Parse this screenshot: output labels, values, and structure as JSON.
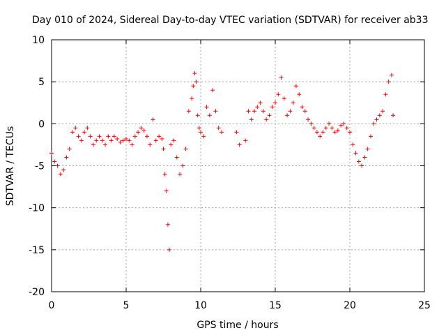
{
  "chart_data": {
    "type": "scatter",
    "title": "Day 010 of 2024, Sidereal Day-to-day VTEC variation (SDTVAR) for receiver ab33",
    "xlabel": "GPS time / hours",
    "ylabel": "SDTVAR / TECUs",
    "xlim": [
      0,
      25
    ],
    "ylim": [
      -20,
      10
    ],
    "xticks": [
      0,
      5,
      10,
      15,
      20,
      25
    ],
    "yticks": [
      -20,
      -15,
      -10,
      -5,
      0,
      5,
      10
    ],
    "xtick_labels": [
      "0",
      "5",
      "10",
      "15",
      "20",
      "25"
    ],
    "ytick_labels": [
      "-20",
      "-15",
      "-10",
      "-5",
      "0",
      "5",
      "10"
    ],
    "grid": true,
    "marker": "+",
    "series": [
      {
        "name": "SDTVAR",
        "color": "#ff0000",
        "x": [
          0.0,
          0.2,
          0.4,
          0.6,
          0.8,
          1.0,
          1.2,
          1.4,
          1.6,
          1.8,
          2.0,
          2.2,
          2.4,
          2.6,
          2.8,
          3.0,
          3.2,
          3.4,
          3.6,
          3.8,
          4.0,
          4.2,
          4.4,
          4.6,
          4.8,
          5.0,
          5.2,
          5.4,
          5.6,
          5.8,
          6.0,
          6.2,
          6.4,
          6.6,
          6.8,
          7.0,
          7.2,
          7.4,
          7.5,
          7.6,
          7.7,
          7.8,
          7.9,
          8.0,
          8.2,
          8.4,
          8.6,
          8.8,
          9.0,
          9.2,
          9.4,
          9.5,
          9.6,
          9.7,
          9.8,
          9.9,
          10.0,
          10.2,
          10.4,
          10.6,
          10.8,
          11.0,
          11.2,
          11.4,
          12.4,
          12.6,
          13.0,
          13.2,
          13.4,
          13.6,
          13.8,
          14.0,
          14.2,
          14.4,
          14.6,
          14.8,
          15.0,
          15.2,
          15.4,
          15.6,
          15.8,
          16.0,
          16.2,
          16.4,
          16.6,
          16.8,
          17.0,
          17.2,
          17.4,
          17.6,
          17.8,
          18.0,
          18.2,
          18.4,
          18.6,
          18.8,
          19.0,
          19.2,
          19.4,
          19.6,
          19.8,
          20.0,
          20.2,
          20.4,
          20.6,
          20.8,
          21.0,
          21.2,
          21.4,
          21.6,
          21.8,
          22.0,
          22.2,
          22.4,
          22.6,
          22.8,
          22.9
        ],
        "y": [
          -3.5,
          -4.5,
          -5.0,
          -6.0,
          -5.5,
          -4.0,
          -3.0,
          -1.0,
          -0.5,
          -1.5,
          -2.0,
          -1.0,
          -0.5,
          -1.5,
          -2.5,
          -2.0,
          -1.5,
          -2.0,
          -2.5,
          -1.5,
          -2.0,
          -1.5,
          -1.8,
          -2.2,
          -2.0,
          -1.8,
          -2.0,
          -2.5,
          -1.5,
          -1.0,
          -0.5,
          -0.8,
          -1.5,
          -2.5,
          0.5,
          -2.0,
          -1.5,
          -1.8,
          -3.0,
          -6.0,
          -8.0,
          -12.0,
          -15.0,
          -2.5,
          -2.0,
          -4.0,
          -6.0,
          -5.0,
          -3.0,
          1.5,
          3.0,
          4.5,
          6.0,
          5.0,
          1.0,
          -0.5,
          -1.0,
          -1.5,
          2.0,
          1.0,
          4.0,
          1.5,
          -0.5,
          -1.0,
          -1.0,
          -2.5,
          -2.0,
          1.5,
          0.5,
          1.5,
          2.0,
          2.5,
          1.5,
          0.5,
          1.0,
          2.0,
          2.5,
          3.5,
          5.5,
          3.0,
          1.0,
          1.5,
          2.5,
          4.5,
          3.5,
          2.0,
          1.5,
          0.5,
          0.0,
          -0.5,
          -1.0,
          -1.5,
          -1.0,
          -0.5,
          0.0,
          -0.5,
          -1.0,
          -0.8,
          -0.2,
          0.0,
          -0.5,
          -1.0,
          -2.5,
          -3.5,
          -4.5,
          -5.0,
          -4.0,
          -3.0,
          -1.5,
          0.0,
          0.5,
          1.0,
          1.5,
          3.5,
          5.0,
          5.8,
          1.0
        ]
      }
    ]
  }
}
